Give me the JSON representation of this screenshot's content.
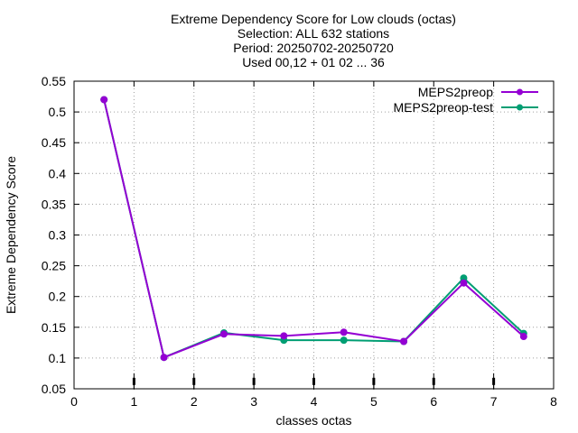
{
  "chart_data": {
    "type": "line",
    "title_lines": [
      "Extreme Dependency Score  for Low clouds (octas)",
      "Selection: ALL    632 stations",
      "Period: 20250702-20250720",
      "Used 00,12 + 01 02 ... 36"
    ],
    "xlabel": "classes octas",
    "ylabel": "Extreme Dependency Score",
    "xlim": [
      0,
      8
    ],
    "ylim": [
      0.05,
      0.55
    ],
    "xticks": [
      0,
      1,
      2,
      3,
      4,
      5,
      6,
      7,
      8
    ],
    "yticks": [
      0.05,
      0.1,
      0.15,
      0.2,
      0.25,
      0.3,
      0.35,
      0.4,
      0.45,
      0.5,
      0.55
    ],
    "grid": true,
    "legend_position": "top-right",
    "x": [
      0.5,
      1.5,
      2.5,
      3.5,
      4.5,
      5.5,
      6.5,
      7.5
    ],
    "series": [
      {
        "name": "MEPS2preop",
        "color": "#9400d3",
        "values": [
          0.52,
          0.101,
          0.139,
          0.136,
          0.142,
          0.127,
          0.222,
          0.135
        ]
      },
      {
        "name": "MEPS2preop-test",
        "color": "#009e73",
        "values": [
          0.52,
          0.101,
          0.141,
          0.129,
          0.129,
          0.127,
          0.23,
          0.14
        ]
      }
    ],
    "error_bar_x": [
      1,
      2,
      3,
      4,
      5,
      6,
      7
    ],
    "error_bar_y": 0.062
  }
}
